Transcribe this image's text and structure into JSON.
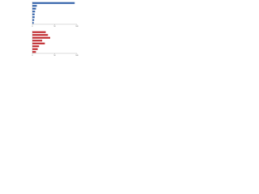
{
  "chart_data": [
    {
      "type": "barh",
      "categories": [
        null,
        null,
        null,
        null,
        null,
        null,
        null,
        null
      ],
      "values": [
        95,
        10,
        8,
        6,
        5,
        5,
        4,
        3
      ],
      "color": "#2f5fa8",
      "xlim": [
        0,
        100
      ],
      "xticks": [
        0,
        50,
        100
      ],
      "grid": false
    },
    {
      "type": "barh",
      "categories": [
        null,
        null,
        null,
        null,
        null,
        null,
        null,
        null
      ],
      "values": [
        30,
        35,
        40,
        22,
        28,
        15,
        12,
        8
      ],
      "color": "#c0282d",
      "xlim": [
        0,
        100
      ],
      "xticks": [
        0,
        50,
        100
      ],
      "grid": false
    }
  ]
}
